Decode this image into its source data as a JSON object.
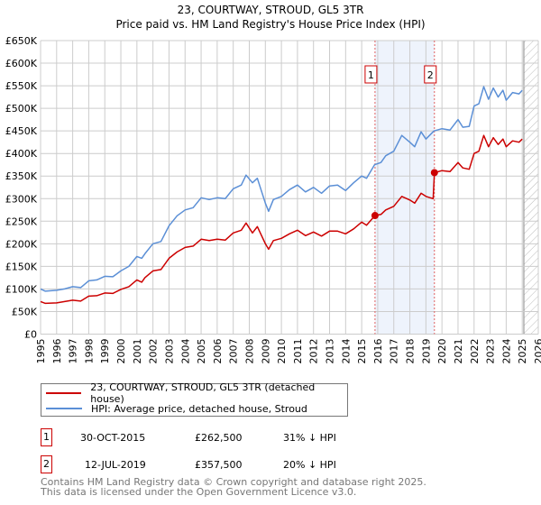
{
  "chart_data": {
    "type": "line",
    "title": "23, COURTWAY, STROUD, GL5 3TR",
    "subtitle": "Price paid vs. HM Land Registry's House Price Index (HPI)",
    "xlim": [
      1995,
      2026
    ],
    "ylim": [
      0,
      650000
    ],
    "x_ticks": [
      "1995",
      "1996",
      "1997",
      "1998",
      "1999",
      "2000",
      "2001",
      "2002",
      "2003",
      "2004",
      "2005",
      "2006",
      "2007",
      "2008",
      "2009",
      "2010",
      "2011",
      "2012",
      "2013",
      "2014",
      "2015",
      "2016",
      "2017",
      "2018",
      "2019",
      "2020",
      "2021",
      "2022",
      "2023",
      "2024",
      "2025",
      "2026"
    ],
    "y_ticks": [
      {
        "v": 0,
        "label": "£0"
      },
      {
        "v": 50000,
        "label": "£50K"
      },
      {
        "v": 100000,
        "label": "£100K"
      },
      {
        "v": 150000,
        "label": "£150K"
      },
      {
        "v": 200000,
        "label": "£200K"
      },
      {
        "v": 250000,
        "label": "£250K"
      },
      {
        "v": 300000,
        "label": "£300K"
      },
      {
        "v": 350000,
        "label": "£350K"
      },
      {
        "v": 400000,
        "label": "£400K"
      },
      {
        "v": 450000,
        "label": "£450K"
      },
      {
        "v": 500000,
        "label": "£500K"
      },
      {
        "v": 550000,
        "label": "£550K"
      },
      {
        "v": 600000,
        "label": "£600K"
      },
      {
        "v": 650000,
        "label": "£650K"
      }
    ],
    "grid": true,
    "shaded_region": [
      2015.83,
      2019.53
    ],
    "forecast_hatch_from": 2025.1,
    "series": [
      {
        "name": "23, COURTWAY, STROUD, GL5 3TR (detached house)",
        "color": "#cc0000",
        "x": [
          1995,
          1995.3,
          1996,
          1997,
          1997.5,
          1998,
          1998.5,
          1999,
          1999.5,
          2000,
          2000.5,
          2001,
          2001.3,
          2001.5,
          2002,
          2002.5,
          2003,
          2003.5,
          2004,
          2004.5,
          2005,
          2005.5,
          2006,
          2006.5,
          2007,
          2007.5,
          2007.8,
          2008.2,
          2008.5,
          2009,
          2009.2,
          2009.5,
          2010,
          2010.5,
          2011,
          2011.5,
          2012,
          2012.5,
          2013,
          2013.5,
          2014,
          2014.5,
          2015,
          2015.3,
          2015.83,
          2016.2,
          2016.5,
          2017,
          2017.5,
          2018,
          2018.3,
          2018.7,
          2019,
          2019.45,
          2019.53,
          2020,
          2020.5,
          2021,
          2021.3,
          2021.7,
          2022,
          2022.3,
          2022.6,
          2022.9,
          2023.2,
          2023.5,
          2023.8,
          2024,
          2024.4,
          2024.8,
          2025
        ],
        "y": [
          72000,
          68000,
          69000,
          75000,
          73000,
          84000,
          85000,
          91000,
          90000,
          99000,
          105000,
          120000,
          115000,
          125000,
          140000,
          143000,
          168000,
          182000,
          192000,
          195000,
          210000,
          207000,
          210000,
          208000,
          224000,
          230000,
          246000,
          224000,
          238000,
          200000,
          188000,
          207000,
          212000,
          222000,
          230000,
          218000,
          226000,
          217000,
          228000,
          228000,
          222000,
          233000,
          248000,
          241000,
          262500,
          265000,
          275000,
          283000,
          305000,
          297000,
          290000,
          312000,
          305000,
          300000,
          357500,
          362000,
          360000,
          380000,
          368000,
          365000,
          400000,
          405000,
          440000,
          415000,
          435000,
          420000,
          432000,
          415000,
          428000,
          425000,
          432000
        ]
      },
      {
        "name": "HPI: Average price, detached house, Stroud",
        "color": "#5b8fd6",
        "x": [
          1995,
          1995.3,
          1996,
          1996.5,
          1997,
          1997.5,
          1998,
          1998.5,
          1999,
          1999.5,
          2000,
          2000.5,
          2001,
          2001.3,
          2001.5,
          2002,
          2002.5,
          2003,
          2003.5,
          2004,
          2004.5,
          2005,
          2005.5,
          2006,
          2006.5,
          2007,
          2007.5,
          2007.8,
          2008.2,
          2008.5,
          2009,
          2009.2,
          2009.5,
          2010,
          2010.5,
          2011,
          2011.5,
          2012,
          2012.5,
          2013,
          2013.5,
          2014,
          2014.5,
          2015,
          2015.3,
          2015.8,
          2016.2,
          2016.5,
          2017,
          2017.5,
          2018,
          2018.3,
          2018.7,
          2019,
          2019.5,
          2020,
          2020.5,
          2021,
          2021.3,
          2021.7,
          2022,
          2022.3,
          2022.6,
          2022.9,
          2023.2,
          2023.5,
          2023.8,
          2024,
          2024.4,
          2024.8,
          2025
        ],
        "y": [
          100000,
          95000,
          97000,
          100000,
          105000,
          103000,
          118000,
          120000,
          128000,
          127000,
          140000,
          150000,
          172000,
          168000,
          178000,
          200000,
          205000,
          240000,
          262000,
          275000,
          280000,
          302000,
          298000,
          302000,
          300000,
          322000,
          330000,
          352000,
          335000,
          345000,
          290000,
          272000,
          298000,
          305000,
          320000,
          330000,
          315000,
          325000,
          312000,
          328000,
          330000,
          318000,
          335000,
          350000,
          345000,
          375000,
          380000,
          395000,
          405000,
          440000,
          425000,
          415000,
          448000,
          432000,
          450000,
          455000,
          452000,
          475000,
          458000,
          460000,
          505000,
          510000,
          548000,
          520000,
          545000,
          525000,
          540000,
          518000,
          535000,
          532000,
          540000
        ]
      }
    ],
    "annotations": [
      {
        "label": "1",
        "x": 2015.83,
        "y": 262500
      },
      {
        "label": "2",
        "x": 2019.53,
        "y": 357500
      }
    ],
    "legend_placement": "below"
  },
  "legend": {
    "property": "23, COURTWAY, STROUD, GL5 3TR (detached house)",
    "hpi": "HPI: Average price, detached house, Stroud"
  },
  "sales": [
    {
      "num": "1",
      "date": "30-OCT-2015",
      "price": "£262,500",
      "diff": "31% ↓ HPI"
    },
    {
      "num": "2",
      "date": "12-JUL-2019",
      "price": "£357,500",
      "diff": "20% ↓ HPI"
    }
  ],
  "footer": {
    "line1": "Contains HM Land Registry data © Crown copyright and database right 2025.",
    "line2": "This data is licensed under the Open Government Licence v3.0."
  },
  "colors": {
    "red": "#cc0000",
    "blue": "#5b8fd6",
    "shade": "#eef3fc",
    "grid": "#cccccc"
  }
}
